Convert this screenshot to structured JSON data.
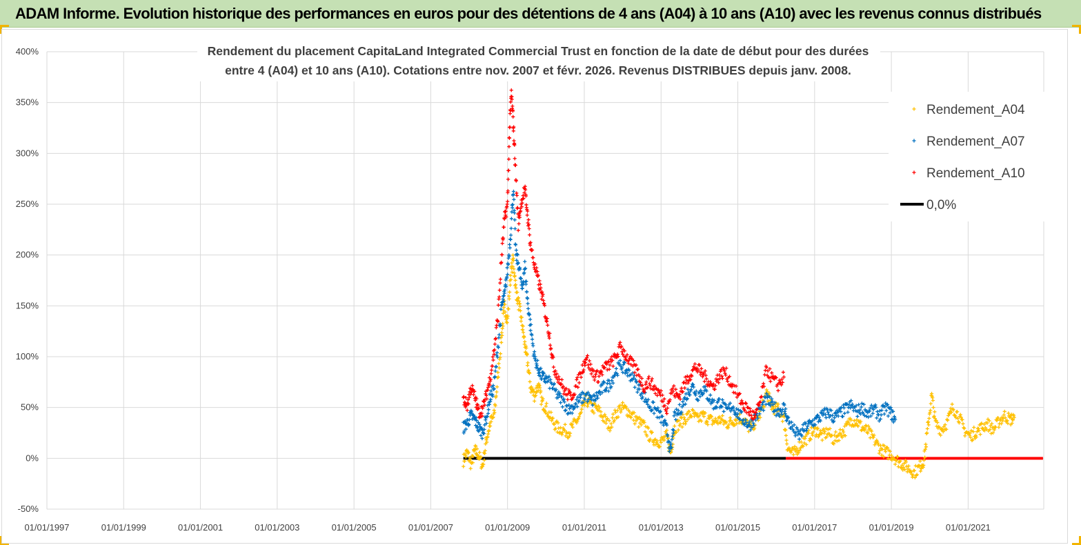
{
  "banner": {
    "title": "ADAM Informe. Evolution historique des performances en euros pour des détentions de 4 ans (A04) à 10 ans (A10) avec les revenus connus distribués"
  },
  "chart_data": {
    "type": "scatter",
    "title_lines": [
      "Rendement du placement CapitaLand Integrated Commercial Trust en fonction de la date de début pour des durées",
      "entre 4 (A04) et 10 ans (A10).  Cotations entre nov. 2007 et févr. 2026. Revenus DISTRIBUES depuis janv. 2008."
    ],
    "xlabel": "",
    "ylabel": "",
    "x_tick_labels": [
      "01/01/1997",
      "01/01/1999",
      "01/01/2001",
      "01/01/2003",
      "01/01/2005",
      "01/01/2007",
      "01/01/2009",
      "01/01/2011",
      "01/01/2013",
      "01/01/2015",
      "01/01/2017",
      "01/01/2019",
      "01/01/2021"
    ],
    "x_range": [
      1997.0,
      2022.97
    ],
    "y_tick_labels": [
      "-50%",
      "0%",
      "50%",
      "100%",
      "150%",
      "200%",
      "250%",
      "300%",
      "350%",
      "400%"
    ],
    "y_ticks": [
      -50,
      0,
      50,
      100,
      150,
      200,
      250,
      300,
      350,
      400
    ],
    "ylim": [
      -50,
      400
    ],
    "grid": true,
    "legend_position": "top-right",
    "series": [
      {
        "name": "Rendement_A04",
        "color": "#ffc000",
        "marker": "+",
        "points": [
          [
            2007.85,
            -2
          ],
          [
            2007.95,
            6
          ],
          [
            2008.05,
            -6
          ],
          [
            2008.15,
            8
          ],
          [
            2008.25,
            3
          ],
          [
            2008.35,
            -8
          ],
          [
            2008.45,
            18
          ],
          [
            2008.55,
            35
          ],
          [
            2008.65,
            42
          ],
          [
            2008.75,
            80
          ],
          [
            2008.85,
            122
          ],
          [
            2008.92,
            150
          ],
          [
            2009.0,
            135
          ],
          [
            2009.08,
            180
          ],
          [
            2009.15,
            196
          ],
          [
            2009.22,
            165
          ],
          [
            2009.3,
            150
          ],
          [
            2009.38,
            132
          ],
          [
            2009.45,
            112
          ],
          [
            2009.52,
            95
          ],
          [
            2009.6,
            70
          ],
          [
            2009.7,
            62
          ],
          [
            2009.8,
            72
          ],
          [
            2009.9,
            55
          ],
          [
            2010.0,
            50
          ],
          [
            2010.15,
            38
          ],
          [
            2010.3,
            30
          ],
          [
            2010.45,
            28
          ],
          [
            2010.6,
            26
          ],
          [
            2010.75,
            34
          ],
          [
            2010.9,
            42
          ],
          [
            2011.05,
            58
          ],
          [
            2011.2,
            50
          ],
          [
            2011.35,
            48
          ],
          [
            2011.5,
            40
          ],
          [
            2011.65,
            32
          ],
          [
            2011.8,
            42
          ],
          [
            2011.95,
            50
          ],
          [
            2012.1,
            48
          ],
          [
            2012.25,
            42
          ],
          [
            2012.4,
            36
          ],
          [
            2012.55,
            32
          ],
          [
            2012.7,
            22
          ],
          [
            2012.85,
            18
          ],
          [
            2013.0,
            16
          ],
          [
            2013.15,
            22
          ],
          [
            2013.25,
            5
          ],
          [
            2013.35,
            30
          ],
          [
            2013.5,
            35
          ],
          [
            2013.65,
            40
          ],
          [
            2013.8,
            44
          ],
          [
            2013.95,
            38
          ],
          [
            2014.1,
            42
          ],
          [
            2014.25,
            38
          ],
          [
            2014.4,
            36
          ],
          [
            2014.55,
            38
          ],
          [
            2014.7,
            34
          ],
          [
            2014.85,
            36
          ],
          [
            2015.0,
            40
          ],
          [
            2015.15,
            38
          ],
          [
            2015.3,
            30
          ],
          [
            2015.45,
            35
          ],
          [
            2015.6,
            45
          ],
          [
            2015.75,
            65
          ],
          [
            2015.9,
            50
          ],
          [
            2016.05,
            48
          ],
          [
            2016.2,
            40
          ],
          [
            2016.3,
            10
          ],
          [
            2016.45,
            4
          ],
          [
            2016.6,
            12
          ],
          [
            2016.75,
            18
          ],
          [
            2016.9,
            24
          ],
          [
            2017.05,
            28
          ],
          [
            2017.2,
            22
          ],
          [
            2017.35,
            26
          ],
          [
            2017.5,
            18
          ],
          [
            2017.65,
            24
          ],
          [
            2017.8,
            28
          ],
          [
            2017.95,
            38
          ],
          [
            2018.1,
            36
          ],
          [
            2018.25,
            30
          ],
          [
            2018.4,
            26
          ],
          [
            2018.55,
            18
          ],
          [
            2018.7,
            10
          ],
          [
            2018.85,
            6
          ],
          [
            2019.0,
            4
          ],
          [
            2019.15,
            -2
          ],
          [
            2019.3,
            -6
          ],
          [
            2019.45,
            -10
          ],
          [
            2019.6,
            -14
          ],
          [
            2019.75,
            -8
          ],
          [
            2019.85,
            -2
          ],
          [
            2019.95,
            30
          ],
          [
            2020.05,
            62
          ],
          [
            2020.15,
            34
          ],
          [
            2020.3,
            28
          ],
          [
            2020.45,
            35
          ],
          [
            2020.6,
            50
          ],
          [
            2020.75,
            42
          ],
          [
            2020.9,
            28
          ],
          [
            2021.05,
            22
          ],
          [
            2021.2,
            26
          ],
          [
            2021.35,
            30
          ],
          [
            2021.5,
            34
          ],
          [
            2021.65,
            28
          ],
          [
            2021.8,
            36
          ],
          [
            2021.95,
            42
          ],
          [
            2022.1,
            38
          ],
          [
            2022.2,
            40
          ]
        ]
      },
      {
        "name": "Rendement_A07",
        "color": "#0070c0",
        "marker": "+",
        "points": [
          [
            2007.85,
            30
          ],
          [
            2007.95,
            35
          ],
          [
            2008.05,
            42
          ],
          [
            2008.15,
            38
          ],
          [
            2008.25,
            30
          ],
          [
            2008.35,
            25
          ],
          [
            2008.45,
            40
          ],
          [
            2008.55,
            60
          ],
          [
            2008.65,
            70
          ],
          [
            2008.75,
            110
          ],
          [
            2008.85,
            150
          ],
          [
            2008.92,
            160
          ],
          [
            2009.0,
            185
          ],
          [
            2009.08,
            220
          ],
          [
            2009.15,
            265
          ],
          [
            2009.22,
            200
          ],
          [
            2009.3,
            190
          ],
          [
            2009.38,
            165
          ],
          [
            2009.45,
            190
          ],
          [
            2009.52,
            155
          ],
          [
            2009.6,
            130
          ],
          [
            2009.7,
            100
          ],
          [
            2009.8,
            88
          ],
          [
            2009.9,
            80
          ],
          [
            2010.0,
            78
          ],
          [
            2010.15,
            72
          ],
          [
            2010.3,
            62
          ],
          [
            2010.45,
            55
          ],
          [
            2010.6,
            48
          ],
          [
            2010.75,
            52
          ],
          [
            2010.9,
            58
          ],
          [
            2011.05,
            62
          ],
          [
            2011.2,
            56
          ],
          [
            2011.35,
            62
          ],
          [
            2011.5,
            70
          ],
          [
            2011.65,
            72
          ],
          [
            2011.8,
            84
          ],
          [
            2011.95,
            92
          ],
          [
            2012.1,
            86
          ],
          [
            2012.25,
            80
          ],
          [
            2012.4,
            70
          ],
          [
            2012.55,
            62
          ],
          [
            2012.7,
            52
          ],
          [
            2012.85,
            48
          ],
          [
            2013.0,
            40
          ],
          [
            2013.15,
            28
          ],
          [
            2013.25,
            5
          ],
          [
            2013.35,
            40
          ],
          [
            2013.5,
            48
          ],
          [
            2013.65,
            60
          ],
          [
            2013.8,
            72
          ],
          [
            2013.95,
            62
          ],
          [
            2014.1,
            68
          ],
          [
            2014.25,
            60
          ],
          [
            2014.4,
            52
          ],
          [
            2014.55,
            56
          ],
          [
            2014.7,
            46
          ],
          [
            2014.85,
            52
          ],
          [
            2015.0,
            44
          ],
          [
            2015.15,
            38
          ],
          [
            2015.3,
            32
          ],
          [
            2015.45,
            40
          ],
          [
            2015.6,
            48
          ],
          [
            2015.75,
            58
          ],
          [
            2015.9,
            52
          ],
          [
            2016.05,
            46
          ],
          [
            2016.2,
            50
          ],
          [
            2016.3,
            38
          ],
          [
            2016.45,
            28
          ],
          [
            2016.6,
            22
          ],
          [
            2016.75,
            30
          ],
          [
            2016.9,
            34
          ],
          [
            2017.05,
            38
          ],
          [
            2017.2,
            42
          ],
          [
            2017.35,
            46
          ],
          [
            2017.5,
            40
          ],
          [
            2017.65,
            44
          ],
          [
            2017.8,
            48
          ],
          [
            2017.95,
            52
          ],
          [
            2018.1,
            46
          ],
          [
            2018.25,
            50
          ],
          [
            2018.4,
            44
          ],
          [
            2018.55,
            48
          ],
          [
            2018.7,
            42
          ],
          [
            2018.85,
            50
          ],
          [
            2019.0,
            44
          ],
          [
            2019.1,
            38
          ]
        ]
      },
      {
        "name": "Rendement_A10",
        "color": "#ff0000",
        "marker": "+",
        "points": [
          [
            2007.85,
            58
          ],
          [
            2007.95,
            52
          ],
          [
            2008.05,
            70
          ],
          [
            2008.15,
            60
          ],
          [
            2008.25,
            45
          ],
          [
            2008.35,
            48
          ],
          [
            2008.45,
            62
          ],
          [
            2008.55,
            80
          ],
          [
            2008.65,
            105
          ],
          [
            2008.75,
            140
          ],
          [
            2008.85,
            200
          ],
          [
            2008.92,
            235
          ],
          [
            2009.0,
            250
          ],
          [
            2009.05,
            320
          ],
          [
            2009.1,
            360
          ],
          [
            2009.15,
            330
          ],
          [
            2009.2,
            290
          ],
          [
            2009.28,
            230
          ],
          [
            2009.35,
            250
          ],
          [
            2009.45,
            265
          ],
          [
            2009.52,
            240
          ],
          [
            2009.6,
            210
          ],
          [
            2009.7,
            190
          ],
          [
            2009.8,
            175
          ],
          [
            2009.9,
            160
          ],
          [
            2010.0,
            140
          ],
          [
            2010.1,
            120
          ],
          [
            2010.2,
            90
          ],
          [
            2010.35,
            78
          ],
          [
            2010.5,
            65
          ],
          [
            2010.65,
            60
          ],
          [
            2010.8,
            72
          ],
          [
            2010.95,
            88
          ],
          [
            2011.05,
            100
          ],
          [
            2011.2,
            85
          ],
          [
            2011.35,
            80
          ],
          [
            2011.5,
            88
          ],
          [
            2011.65,
            92
          ],
          [
            2011.8,
            98
          ],
          [
            2011.95,
            110
          ],
          [
            2012.1,
            100
          ],
          [
            2012.25,
            92
          ],
          [
            2012.4,
            84
          ],
          [
            2012.55,
            70
          ],
          [
            2012.7,
            76
          ],
          [
            2012.85,
            68
          ],
          [
            2013.0,
            62
          ],
          [
            2013.15,
            50
          ],
          [
            2013.3,
            68
          ],
          [
            2013.45,
            60
          ],
          [
            2013.6,
            72
          ],
          [
            2013.75,
            82
          ],
          [
            2013.9,
            90
          ],
          [
            2014.05,
            84
          ],
          [
            2014.2,
            78
          ],
          [
            2014.35,
            70
          ],
          [
            2014.5,
            80
          ],
          [
            2014.65,
            86
          ],
          [
            2014.8,
            76
          ],
          [
            2015.0,
            62
          ],
          [
            2015.15,
            52
          ],
          [
            2015.3,
            46
          ],
          [
            2015.45,
            40
          ],
          [
            2015.6,
            58
          ],
          [
            2015.75,
            88
          ],
          [
            2015.9,
            78
          ],
          [
            2016.05,
            72
          ],
          [
            2016.2,
            80
          ]
        ]
      },
      {
        "name": "0,0%",
        "color": "#000000",
        "type": "line",
        "points": [
          [
            2007.85,
            0
          ],
          [
            2016.25,
            0
          ]
        ]
      }
    ],
    "zero_line_overlay": {
      "name": "Rendement_A10 (0%)",
      "color": "#ff0000",
      "points": [
        [
          2016.25,
          0
        ],
        [
          2022.95,
          0
        ]
      ]
    },
    "legend": [
      {
        "label": "Rendement_A04",
        "color": "#ffc000",
        "marker": "+"
      },
      {
        "label": "Rendement_A07",
        "color": "#0070c0",
        "marker": "+"
      },
      {
        "label": "Rendement_A10",
        "color": "#ff0000",
        "marker": "+"
      },
      {
        "label": "0,0%",
        "color": "#000000",
        "marker": "line"
      }
    ]
  }
}
